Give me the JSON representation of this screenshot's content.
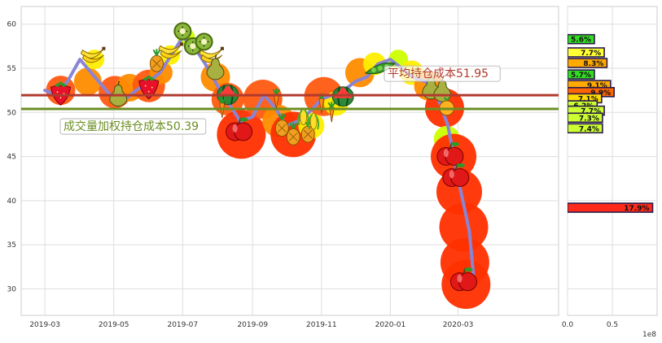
{
  "chart_data": {
    "type": "line",
    "x_ticks": [
      "2019-03",
      "2019-05",
      "2019-07",
      "2019-09",
      "2019-11",
      "2020-01",
      "2020-03"
    ],
    "y_ticks": [
      30,
      35,
      40,
      45,
      50,
      55,
      60
    ],
    "ylim": [
      27,
      62
    ],
    "xlim": [
      "2019-02-08",
      "2020-05-29"
    ],
    "grid": true,
    "series": [
      {
        "style": "price-line",
        "color": "#8a84d4",
        "x": [
          "2019-03-01",
          "2019-03-11",
          "2019-03-21",
          "2019-04-01",
          "2019-04-11",
          "2019-04-21",
          "2019-05-01",
          "2019-05-11",
          "2019-05-21",
          "2019-06-01",
          "2019-06-11",
          "2019-06-21",
          "2019-07-01",
          "2019-07-11",
          "2019-07-21",
          "2019-08-01",
          "2019-08-11",
          "2019-08-21",
          "2019-09-01",
          "2019-09-11",
          "2019-09-21",
          "2019-10-01",
          "2019-10-11",
          "2019-10-21",
          "2019-11-01",
          "2019-11-11",
          "2019-11-21",
          "2019-12-01",
          "2019-12-11",
          "2019-12-21",
          "2020-01-01",
          "2020-01-11",
          "2020-01-21",
          "2020-02-01",
          "2020-02-11",
          "2020-02-21",
          "2020-03-01",
          "2020-03-11",
          "2020-03-15"
        ],
        "y": [
          52.5,
          52.0,
          53.5,
          56.0,
          54.5,
          53.0,
          51.5,
          51.5,
          52.5,
          53.5,
          54.5,
          56.5,
          58.5,
          57.5,
          55.5,
          53.0,
          51.0,
          49.0,
          49.5,
          52.0,
          50.5,
          48.5,
          49.0,
          50.0,
          51.5,
          52.0,
          52.5,
          53.5,
          54.0,
          55.5,
          56.0,
          55.0,
          54.0,
          53.5,
          52.0,
          48.5,
          42.5,
          36.5,
          31.0
        ]
      }
    ],
    "cost_lines": [
      {
        "label": "平均持仓成本51.95",
        "value": 51.95,
        "color": "#b03a2e"
      },
      {
        "label": "成交量加权持仓成本50.39",
        "value": 50.39,
        "color": "#6b8e23"
      }
    ],
    "fruit_markers": [
      {
        "icon": "strawberry",
        "date": "2019-03-15",
        "y": 52.3
      },
      {
        "icon": "banana",
        "date": "2019-04-12",
        "y": 56.5
      },
      {
        "icon": "pear",
        "date": "2019-05-05",
        "y": 52.0
      },
      {
        "icon": "strawberry",
        "date": "2019-06-01",
        "y": 53.0
      },
      {
        "icon": "pineapple",
        "date": "2019-06-08",
        "y": 55.8
      },
      {
        "icon": "banana",
        "date": "2019-06-20",
        "y": 57.0
      },
      {
        "icon": "kiwi",
        "date": "2019-07-01",
        "y": 59.2
      },
      {
        "icon": "kiwi",
        "date": "2019-07-10",
        "y": 57.5
      },
      {
        "icon": "kiwi",
        "date": "2019-07-20",
        "y": 58.0
      },
      {
        "icon": "banana",
        "date": "2019-07-26",
        "y": 56.5
      },
      {
        "icon": "pear",
        "date": "2019-07-30",
        "y": 55.0
      },
      {
        "icon": "watermelon",
        "date": "2019-08-10",
        "y": 52.0
      },
      {
        "icon": "carrot",
        "date": "2019-08-05",
        "y": 50.5
      },
      {
        "icon": "apple",
        "date": "2019-08-20",
        "y": 48.0
      },
      {
        "icon": "carrot",
        "date": "2019-09-22",
        "y": 51.5
      },
      {
        "icon": "pineapple",
        "date": "2019-09-27",
        "y": 48.5
      },
      {
        "icon": "pineapple",
        "date": "2019-10-07",
        "y": 47.5
      },
      {
        "icon": "pineapple",
        "date": "2019-10-20",
        "y": 47.8
      },
      {
        "icon": "corn",
        "date": "2019-10-16",
        "y": 49.5
      },
      {
        "icon": "corn",
        "date": "2019-10-25",
        "y": 49.0
      },
      {
        "icon": "carrot",
        "date": "2019-11-01",
        "y": 51.0
      },
      {
        "icon": "carrot",
        "date": "2019-11-10",
        "y": 50.0
      },
      {
        "icon": "watermelon",
        "date": "2019-11-20",
        "y": 51.8
      },
      {
        "icon": "peas",
        "date": "2019-12-23",
        "y": 55.0
      },
      {
        "icon": "pear",
        "date": "2020-02-06",
        "y": 52.8
      },
      {
        "icon": "pear",
        "date": "2020-02-16",
        "y": 52.5
      },
      {
        "icon": "orange",
        "date": "2020-02-20",
        "y": 50.5
      },
      {
        "icon": "apple",
        "date": "2020-02-23",
        "y": 45.2
      },
      {
        "icon": "apple",
        "date": "2020-02-28",
        "y": 42.8
      },
      {
        "icon": "apple",
        "date": "2020-03-06",
        "y": 31.0
      }
    ],
    "bubbles": [
      {
        "date": "2019-03-15",
        "y": 52.5,
        "r": 18,
        "color": "#ff5a10"
      },
      {
        "date": "2019-04-08",
        "y": 53.5,
        "r": 17,
        "color": "#ff8c00"
      },
      {
        "date": "2019-04-14",
        "y": 56.0,
        "r": 12,
        "color": "#ffee00"
      },
      {
        "date": "2019-05-02",
        "y": 52.3,
        "r": 20,
        "color": "#ff5a10"
      },
      {
        "date": "2019-05-15",
        "y": 52.8,
        "r": 17,
        "color": "#ff8c00"
      },
      {
        "date": "2019-06-01",
        "y": 53.0,
        "r": 20,
        "color": "#ff5a10"
      },
      {
        "date": "2019-06-12",
        "y": 54.5,
        "r": 14,
        "color": "#ff8c00"
      },
      {
        "date": "2019-06-20",
        "y": 56.5,
        "r": 12,
        "color": "#ffee00"
      },
      {
        "date": "2019-07-04",
        "y": 58.5,
        "r": 11,
        "color": "#ccff00"
      },
      {
        "date": "2019-07-16",
        "y": 57.8,
        "r": 9,
        "color": "#44cc00"
      },
      {
        "date": "2019-07-30",
        "y": 54.0,
        "r": 18,
        "color": "#ff8c00"
      },
      {
        "date": "2019-08-10",
        "y": 51.5,
        "r": 20,
        "color": "#ff5a10"
      },
      {
        "date": "2019-08-22",
        "y": 47.5,
        "r": 30,
        "color": "#ff3000"
      },
      {
        "date": "2019-09-10",
        "y": 51.5,
        "r": 24,
        "color": "#ff5a10"
      },
      {
        "date": "2019-09-24",
        "y": 49.0,
        "r": 20,
        "color": "#ff8c00"
      },
      {
        "date": "2019-10-07",
        "y": 47.5,
        "r": 28,
        "color": "#ff3000"
      },
      {
        "date": "2019-10-23",
        "y": 48.5,
        "r": 16,
        "color": "#ffee00"
      },
      {
        "date": "2019-11-03",
        "y": 51.8,
        "r": 24,
        "color": "#ff5a10"
      },
      {
        "date": "2019-11-14",
        "y": 51.0,
        "r": 15,
        "color": "#ffee00"
      },
      {
        "date": "2019-12-05",
        "y": 54.5,
        "r": 18,
        "color": "#ff8c00"
      },
      {
        "date": "2019-12-18",
        "y": 55.5,
        "r": 14,
        "color": "#ffee00"
      },
      {
        "date": "2020-01-08",
        "y": 56.0,
        "r": 12,
        "color": "#ccff00"
      },
      {
        "date": "2020-01-20",
        "y": 54.5,
        "r": 15,
        "color": "#ffee00"
      },
      {
        "date": "2020-02-04",
        "y": 53.0,
        "r": 18,
        "color": "#ff8c00"
      },
      {
        "date": "2020-02-18",
        "y": 50.5,
        "r": 24,
        "color": "#ff3000"
      },
      {
        "date": "2020-02-20",
        "y": 47.0,
        "r": 16,
        "color": "#ccff00"
      },
      {
        "date": "2020-02-26",
        "y": 45.0,
        "r": 28,
        "color": "#ff3000"
      },
      {
        "date": "2020-03-02",
        "y": 41.0,
        "r": 28,
        "color": "#ff3000"
      },
      {
        "date": "2020-03-06",
        "y": 37.0,
        "r": 30,
        "color": "#ff3000"
      },
      {
        "date": "2020-03-07",
        "y": 33.0,
        "r": 30,
        "color": "#ff3000"
      },
      {
        "date": "2020-03-08",
        "y": 30.5,
        "r": 30,
        "color": "#ff3000"
      }
    ],
    "side_bars": {
      "x_ticks": [
        "0.0",
        "0.5"
      ],
      "x_offset_label": "1e8",
      "xlim": [
        0,
        1.0
      ],
      "bars": [
        {
          "y": 58.3,
          "value": 0.3,
          "label": "5.6%",
          "color": "#33dd22"
        },
        {
          "y": 56.8,
          "value": 0.41,
          "label": "7.7%",
          "color": "#ffff33"
        },
        {
          "y": 55.6,
          "value": 0.44,
          "label": "8.3%",
          "color": "#ffaa00"
        },
        {
          "y": 54.3,
          "value": 0.3,
          "label": "5.7%",
          "color": "#33dd22"
        },
        {
          "y": 53.1,
          "value": 0.48,
          "label": "9.1%",
          "color": "#ffaa00"
        },
        {
          "y": 52.3,
          "value": 0.52,
          "label": "9.9%",
          "color": "#ff6600"
        },
        {
          "y": 51.6,
          "value": 0.38,
          "label": "7.1%",
          "color": "#ffdd00"
        },
        {
          "y": 50.8,
          "value": 0.33,
          "label": "6.2%",
          "color": "#ccff33"
        },
        {
          "y": 50.2,
          "value": 0.41,
          "label": "7.7%",
          "color": "#ccff33"
        },
        {
          "y": 49.4,
          "value": 0.39,
          "label": "7.3%",
          "color": "#ccff33"
        },
        {
          "y": 48.2,
          "value": 0.39,
          "label": "7.4%",
          "color": "#ccff33"
        },
        {
          "y": 39.2,
          "value": 0.95,
          "label": "17.9%",
          "color": "#ff2a1a"
        }
      ]
    }
  }
}
